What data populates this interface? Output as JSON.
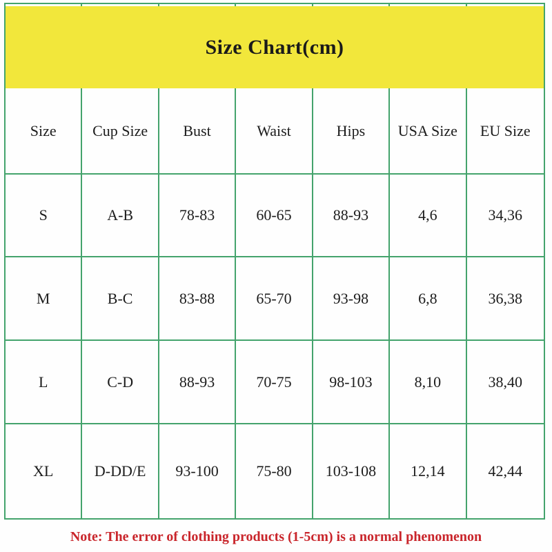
{
  "chart_data": {
    "type": "table",
    "title": "Size Chart(cm)",
    "columns": [
      "Size",
      "Cup Size",
      "Bust",
      "Waist",
      "Hips",
      "USA Size",
      "EU Size"
    ],
    "rows": [
      [
        "S",
        "A-B",
        "78-83",
        "60-65",
        "88-93",
        "4,6",
        "34,36"
      ],
      [
        "M",
        "B-C",
        "83-88",
        "65-70",
        "93-98",
        "6,8",
        "36,38"
      ],
      [
        "L",
        "C-D",
        "88-93",
        "70-75",
        "98-103",
        "8,10",
        "38,40"
      ],
      [
        "XL",
        "D-DD/E",
        "93-100",
        "75-80",
        "103-108",
        "12,14",
        "42,44"
      ]
    ],
    "note": "Note: The error of clothing products (1-5cm) is a normal phenomenon",
    "layout_hints": {
      "grid": "on",
      "title_band": "full-width merged yellow row at top"
    }
  },
  "colors": {
    "header_bg": "#f2e73b",
    "border": "#44a36c",
    "note_text": "#c9252b",
    "cell_text": "#1c1c1c"
  }
}
